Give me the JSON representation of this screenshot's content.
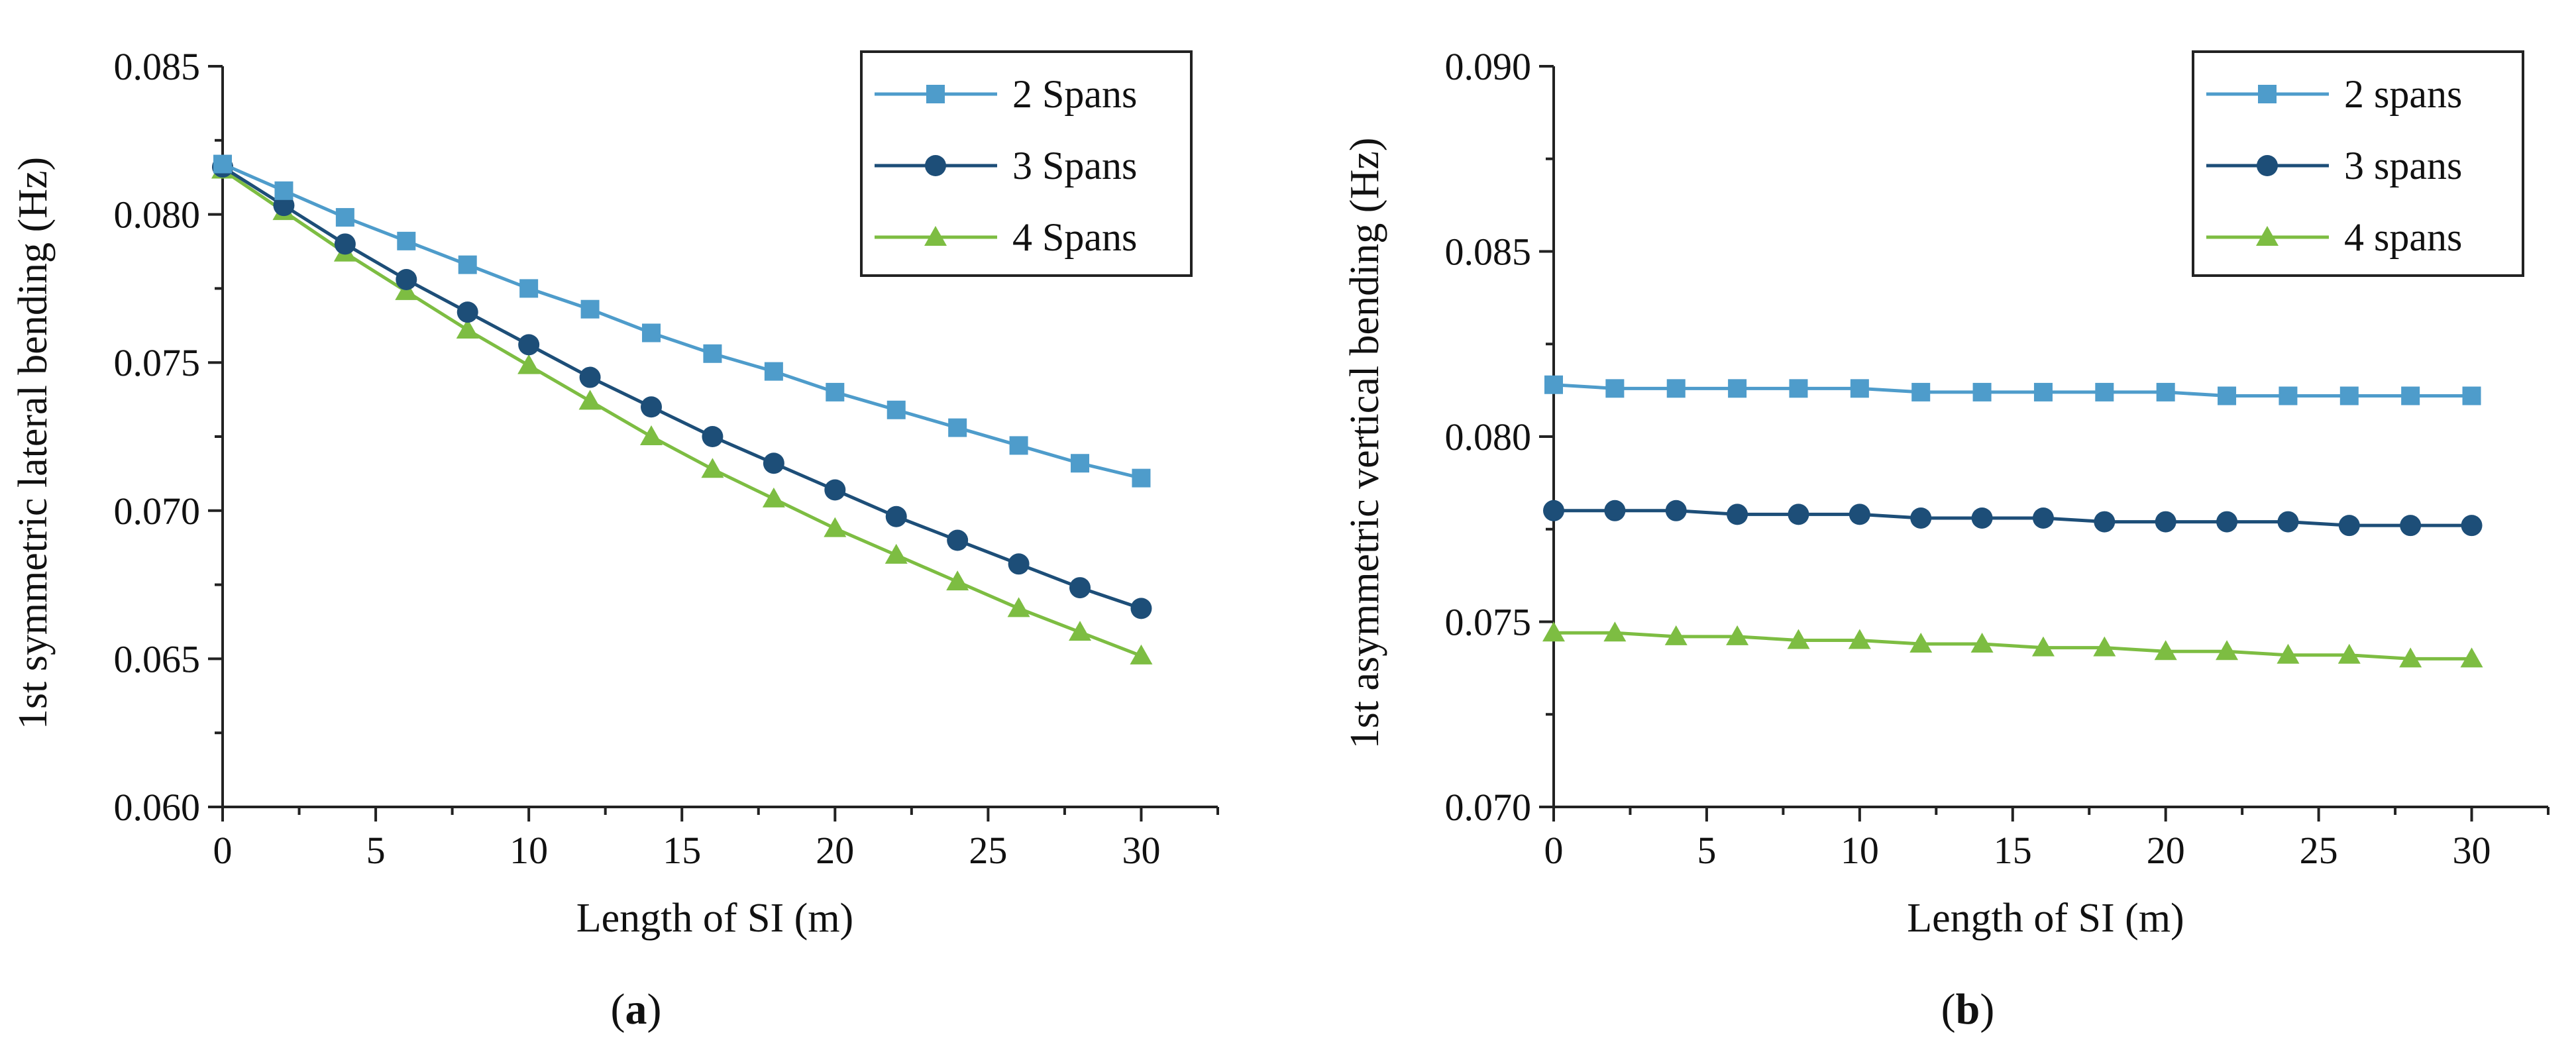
{
  "chart_data": [
    {
      "type": "line",
      "panel_label": "a",
      "xlabel": "Length of SI (m)",
      "ylabel": "1st symmetric lateral bending (Hz)",
      "x": [
        0,
        2,
        4,
        6,
        8,
        10,
        12,
        14,
        16,
        18,
        20,
        22,
        24,
        26,
        28,
        30
      ],
      "xlim": [
        0,
        32.5
      ],
      "ylim": [
        0.06,
        0.085
      ],
      "x_ticks": [
        0,
        5,
        10,
        15,
        20,
        25,
        30
      ],
      "y_ticks": [
        0.06,
        0.065,
        0.07,
        0.075,
        0.08,
        0.085
      ],
      "x_tick_labels": [
        "0",
        "5",
        "10",
        "15",
        "20",
        "25",
        "30"
      ],
      "y_tick_labels": [
        "0.060",
        "0.065",
        "0.070",
        "0.075",
        "0.080",
        "0.085"
      ],
      "grid": false,
      "legend_position": "top-right",
      "series": [
        {
          "name": "2 Spans",
          "marker": "square",
          "color": "#4e9ccb",
          "values": [
            0.0817,
            0.0808,
            0.0799,
            0.0791,
            0.0783,
            0.0775,
            0.0768,
            0.076,
            0.0753,
            0.0747,
            0.074,
            0.0734,
            0.0728,
            0.0722,
            0.0716,
            0.0711
          ]
        },
        {
          "name": "3 Spans",
          "marker": "circle",
          "color": "#1d4e78",
          "values": [
            0.0816,
            0.0803,
            0.079,
            0.0778,
            0.0767,
            0.0756,
            0.0745,
            0.0735,
            0.0725,
            0.0716,
            0.0707,
            0.0698,
            0.069,
            0.0682,
            0.0674,
            0.0667
          ]
        },
        {
          "name": "4 Spans",
          "marker": "triangle",
          "color": "#7dbd42",
          "values": [
            0.0815,
            0.0801,
            0.0787,
            0.0774,
            0.0761,
            0.0749,
            0.0737,
            0.0725,
            0.0714,
            0.0704,
            0.0694,
            0.0685,
            0.0676,
            0.0667,
            0.0659,
            0.0651
          ]
        }
      ]
    },
    {
      "type": "line",
      "panel_label": "b",
      "xlabel": "Length of SI (m)",
      "ylabel": "1st asymmetric vertical bending (Hz)",
      "x": [
        0,
        2,
        4,
        6,
        8,
        10,
        12,
        14,
        16,
        18,
        20,
        22,
        24,
        26,
        28,
        30
      ],
      "xlim": [
        0,
        32.5
      ],
      "ylim": [
        0.07,
        0.09
      ],
      "x_ticks": [
        0,
        5,
        10,
        15,
        20,
        25,
        30
      ],
      "y_ticks": [
        0.07,
        0.075,
        0.08,
        0.085,
        0.09
      ],
      "x_tick_labels": [
        "0",
        "5",
        "10",
        "15",
        "20",
        "25",
        "30"
      ],
      "y_tick_labels": [
        "0.070",
        "0.075",
        "0.080",
        "0.085",
        "0.090"
      ],
      "grid": false,
      "legend_position": "top-right",
      "series": [
        {
          "name": "2 spans",
          "marker": "square",
          "color": "#4e9ccb",
          "values": [
            0.0814,
            0.0813,
            0.0813,
            0.0813,
            0.0813,
            0.0813,
            0.0812,
            0.0812,
            0.0812,
            0.0812,
            0.0812,
            0.0811,
            0.0811,
            0.0811,
            0.0811,
            0.0811
          ]
        },
        {
          "name": "3 spans",
          "marker": "circle",
          "color": "#1d4e78",
          "values": [
            0.078,
            0.078,
            0.078,
            0.0779,
            0.0779,
            0.0779,
            0.0778,
            0.0778,
            0.0778,
            0.0777,
            0.0777,
            0.0777,
            0.0777,
            0.0776,
            0.0776,
            0.0776
          ]
        },
        {
          "name": "4 spans",
          "marker": "triangle",
          "color": "#7dbd42",
          "values": [
            0.0747,
            0.0747,
            0.0746,
            0.0746,
            0.0745,
            0.0745,
            0.0744,
            0.0744,
            0.0743,
            0.0743,
            0.0742,
            0.0742,
            0.0741,
            0.0741,
            0.074,
            0.074
          ]
        }
      ]
    }
  ]
}
